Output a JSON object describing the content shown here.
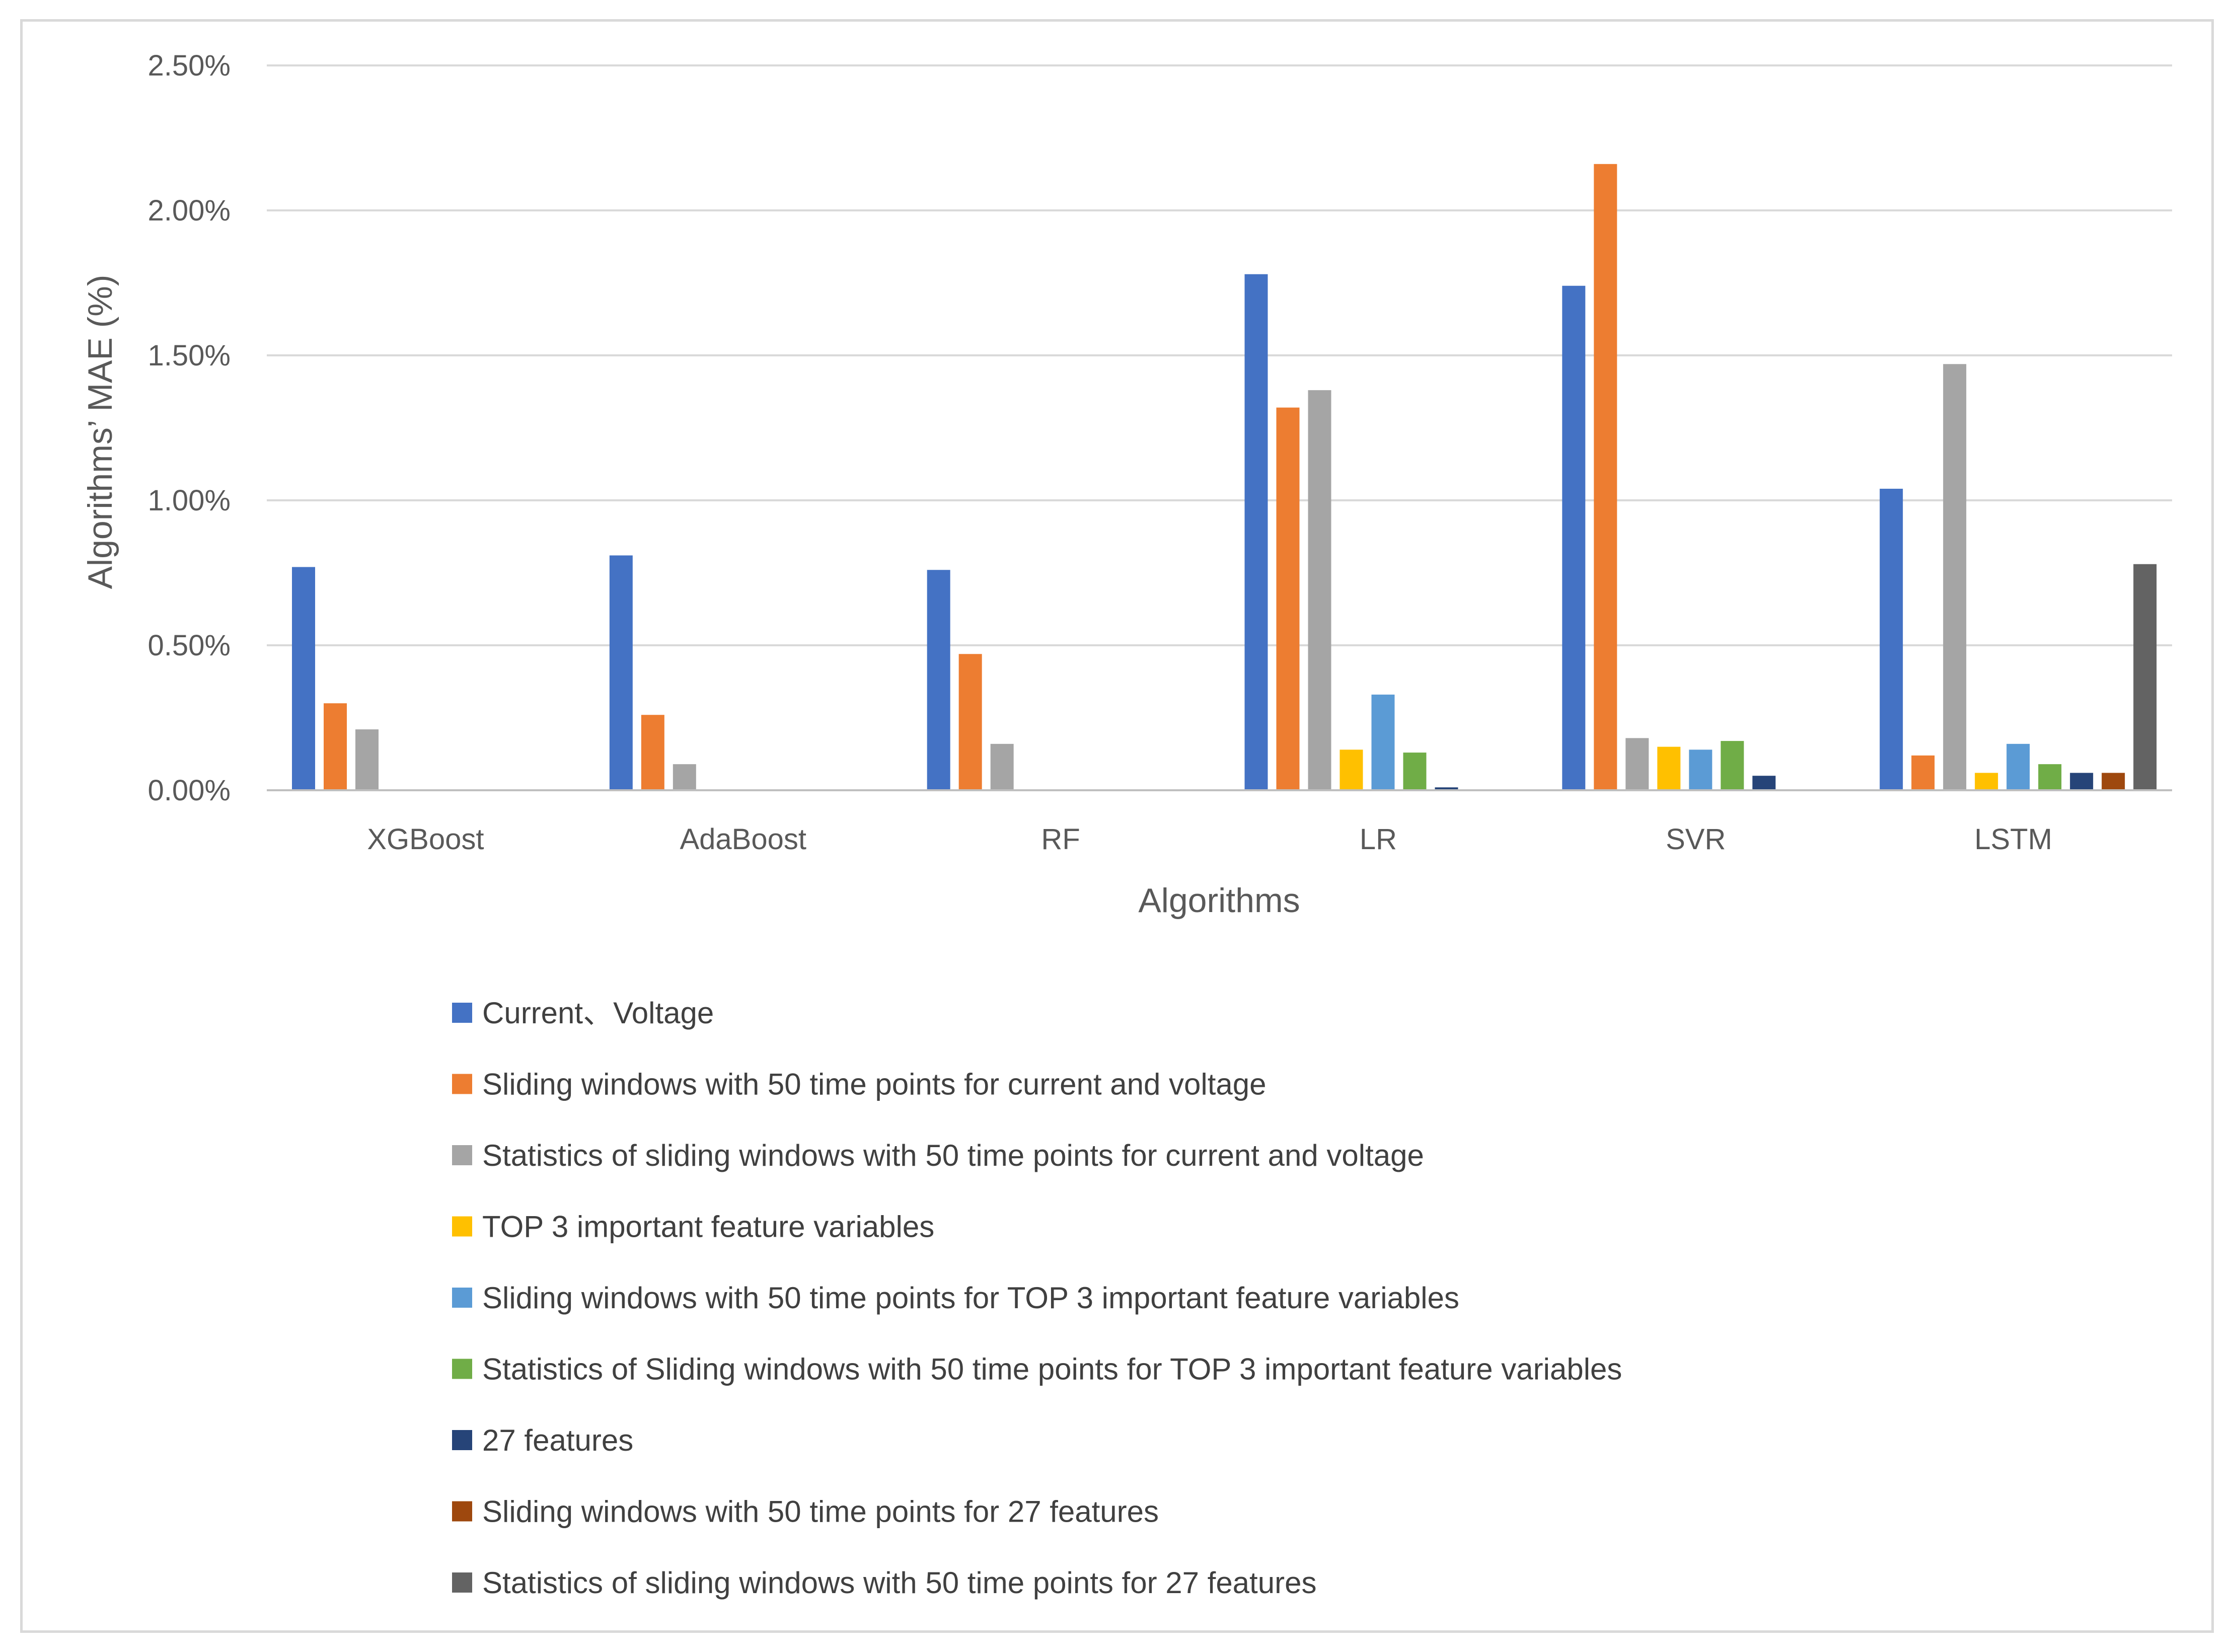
{
  "chart_data": {
    "type": "bar",
    "title": "",
    "xlabel": "Algorithms",
    "ylabel": "Algorithms’ MAE (%)",
    "ylim": [
      0,
      0.025
    ],
    "yticks": [
      "0.00%",
      "0.50%",
      "1.00%",
      "1.50%",
      "2.00%",
      "2.50%"
    ],
    "grid": true,
    "legend_position": "bottom",
    "categories": [
      "XGBoost",
      "AdaBoost",
      "RF",
      "LR",
      "SVR",
      "LSTM"
    ],
    "series": [
      {
        "name": "Current、Voltage",
        "color": "#4472C4",
        "values": [
          0.0077,
          0.0081,
          0.0076,
          0.0178,
          0.0174,
          0.0104
        ]
      },
      {
        "name": "Sliding windows with  50 time points for current and voltage",
        "color": "#ED7D31",
        "values": [
          0.003,
          0.0026,
          0.0047,
          0.0132,
          0.0216,
          0.0012
        ]
      },
      {
        "name": "Statistics of sliding windows with  50 time points for current and voltage",
        "color": "#A5A5A5",
        "values": [
          0.0021,
          0.0009,
          0.0016,
          0.0138,
          0.0018,
          0.0147
        ]
      },
      {
        "name": "TOP 3 important feature variables",
        "color": "#FFC000",
        "values": [
          0,
          0,
          0,
          0.0014,
          0.0015,
          0.0006
        ]
      },
      {
        "name": "Sliding windows with  50 time points for TOP 3 important feature variables",
        "color": "#5B9BD5",
        "values": [
          0,
          0,
          0,
          0.0033,
          0.0014,
          0.0016
        ]
      },
      {
        "name": "Statistics of Sliding windows with  50 time points for TOP 3 important feature variables",
        "color": "#70AD47",
        "values": [
          0,
          0,
          0,
          0.0013,
          0.0017,
          0.0009
        ]
      },
      {
        "name": "27 features",
        "color": "#264478",
        "values": [
          0,
          0,
          0,
          0.0001,
          0.0005,
          0.0006
        ]
      },
      {
        "name": "Sliding windows with  50 time points for 27 features",
        "color": "#9E480E",
        "values": [
          0,
          0,
          0,
          0,
          0,
          0.0006
        ]
      },
      {
        "name": "Statistics of sliding windows with  50 time points for 27 features",
        "color": "#636363",
        "values": [
          0,
          0,
          0,
          0,
          0,
          0.0078
        ]
      }
    ]
  }
}
